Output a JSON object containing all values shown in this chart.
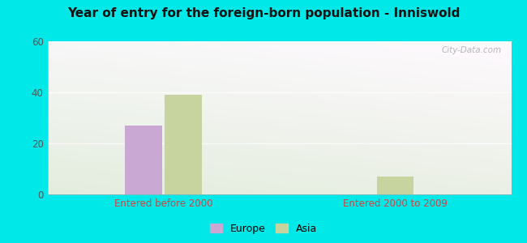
{
  "title": "Year of entry for the foreign-born population - Inniswold",
  "groups": [
    "Entered before 2000",
    "Entered 2000 to 2009"
  ],
  "series": {
    "Europe": [
      27,
      0
    ],
    "Asia": [
      39,
      7
    ]
  },
  "europe_color": "#c9a8d4",
  "asia_color": "#c8d4a0",
  "bar_width": 0.08,
  "group_centers": [
    0.25,
    0.75
  ],
  "bar_gap": 0.005,
  "ylim": [
    0,
    60
  ],
  "yticks": [
    0,
    20,
    40,
    60
  ],
  "outer_bg": "#00e8e8",
  "plot_bg_topleft": "#d4edd4",
  "plot_bg_topright": "#e8f5e8",
  "plot_bg_bottomleft": "#c8e8c8",
  "plot_bg_bottomright": "#f0f8f0",
  "grid_color": "#e8e8e8",
  "title_fontsize": 11,
  "tick_label_fontsize": 8.5,
  "legend_fontsize": 9,
  "axis_label_color": "#cc4444",
  "watermark": "City-Data.com"
}
